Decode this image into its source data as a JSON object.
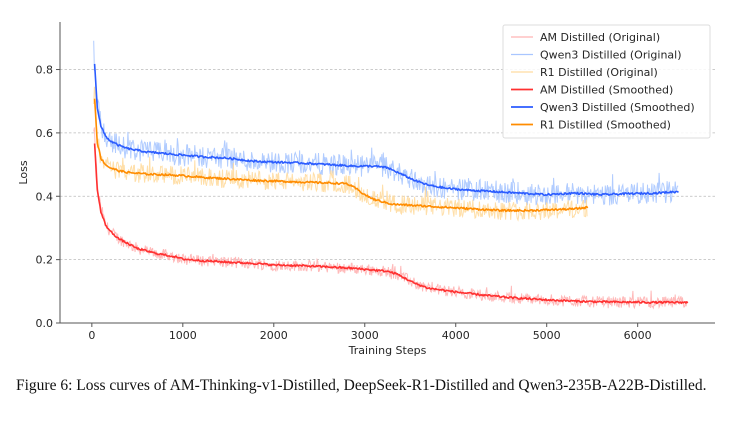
{
  "chart_data": {
    "type": "line",
    "title": "",
    "xlabel": "Training Steps",
    "ylabel": "Loss",
    "xlim": [
      -350,
      6850
    ],
    "ylim": [
      0.0,
      0.95
    ],
    "xticks": [
      0,
      1000,
      2000,
      3000,
      4000,
      5000,
      6000
    ],
    "xtick_labels": [
      "0",
      "1000",
      "2000",
      "3000",
      "4000",
      "5000",
      "6000"
    ],
    "yticks": [
      0.0,
      0.2,
      0.4,
      0.6,
      0.8
    ],
    "ytick_labels": [
      "0.0",
      "0.2",
      "0.4",
      "0.6",
      "0.8"
    ],
    "grid": "y-dashed",
    "legend_position": "top-right",
    "series": [
      {
        "name": "AM Distilled (Smoothed)",
        "kind": "smoothed",
        "color": "#ff3030",
        "x": [
          30,
          60,
          100,
          150,
          200,
          300,
          400,
          500,
          700,
          900,
          1000,
          1200,
          1500,
          1800,
          2000,
          2300,
          2600,
          2900,
          3100,
          3250,
          3350,
          3450,
          3550,
          3700,
          4000,
          4300,
          4600,
          5000,
          5400,
          5800,
          6200,
          6550
        ],
        "y": [
          0.565,
          0.42,
          0.35,
          0.31,
          0.29,
          0.265,
          0.25,
          0.235,
          0.22,
          0.21,
          0.202,
          0.197,
          0.192,
          0.188,
          0.183,
          0.181,
          0.177,
          0.172,
          0.167,
          0.163,
          0.155,
          0.14,
          0.125,
          0.11,
          0.098,
          0.088,
          0.08,
          0.073,
          0.068,
          0.066,
          0.065,
          0.065
        ]
      },
      {
        "name": "Qwen3 Distilled (Smoothed)",
        "kind": "smoothed",
        "color": "#2b5cff",
        "x": [
          30,
          60,
          100,
          150,
          200,
          300,
          400,
          600,
          800,
          1000,
          1200,
          1500,
          1800,
          2000,
          2300,
          2600,
          2900,
          3100,
          3250,
          3400,
          3550,
          3700,
          3900,
          4100,
          4400,
          4700,
          5000,
          5300,
          5600,
          5900,
          6200,
          6450
        ],
        "y": [
          0.82,
          0.68,
          0.62,
          0.59,
          0.575,
          0.56,
          0.55,
          0.54,
          0.535,
          0.53,
          0.525,
          0.52,
          0.51,
          0.508,
          0.505,
          0.5,
          0.495,
          0.495,
          0.49,
          0.47,
          0.45,
          0.435,
          0.425,
          0.42,
          0.415,
          0.41,
          0.405,
          0.41,
          0.405,
          0.408,
          0.41,
          0.415
        ]
      },
      {
        "name": "R1 Distilled (Smoothed)",
        "kind": "smoothed",
        "color": "#ff8c00",
        "x": [
          30,
          60,
          100,
          150,
          200,
          300,
          400,
          600,
          800,
          1000,
          1200,
          1500,
          1800,
          2000,
          2300,
          2600,
          2800,
          2900,
          3000,
          3100,
          3300,
          3600,
          3900,
          4200,
          4500,
          4800,
          5100,
          5300,
          5450
        ],
        "y": [
          0.71,
          0.57,
          0.52,
          0.5,
          0.49,
          0.48,
          0.475,
          0.47,
          0.468,
          0.465,
          0.46,
          0.455,
          0.45,
          0.448,
          0.445,
          0.442,
          0.44,
          0.425,
          0.405,
          0.39,
          0.375,
          0.37,
          0.365,
          0.36,
          0.355,
          0.355,
          0.358,
          0.36,
          0.365
        ]
      }
    ],
    "original_series": [
      {
        "name": "AM Distilled (Original)",
        "kind": "raw",
        "color": "#ffb3b3",
        "follows": 0,
        "noise": 0.018,
        "x_range": [
          20,
          6550
        ]
      },
      {
        "name": "Qwen3 Distilled (Original)",
        "kind": "raw",
        "color": "#a9c6ff",
        "follows": 1,
        "noise": 0.035,
        "x_range": [
          20,
          6450
        ]
      },
      {
        "name": "R1 Distilled (Original)",
        "kind": "raw",
        "color": "#ffdca0",
        "follows": 2,
        "noise": 0.03,
        "x_range": [
          20,
          5450
        ]
      }
    ],
    "legend": [
      {
        "label": "AM Distilled (Original)",
        "color": "#ffb3b3"
      },
      {
        "label": "Qwen3 Distilled (Original)",
        "color": "#a9c6ff"
      },
      {
        "label": "R1 Distilled (Original)",
        "color": "#ffdca0"
      },
      {
        "label": "AM Distilled (Smoothed)",
        "color": "#ff3030"
      },
      {
        "label": "Qwen3 Distilled (Smoothed)",
        "color": "#2b5cff"
      },
      {
        "label": "R1 Distilled (Smoothed)",
        "color": "#ff8c00"
      }
    ]
  },
  "caption": {
    "text": "Figure 6: Loss curves of AM-Thinking-v1-Distilled, DeepSeek-R1-Distilled and Qwen3-235B-A22B-Distilled."
  }
}
